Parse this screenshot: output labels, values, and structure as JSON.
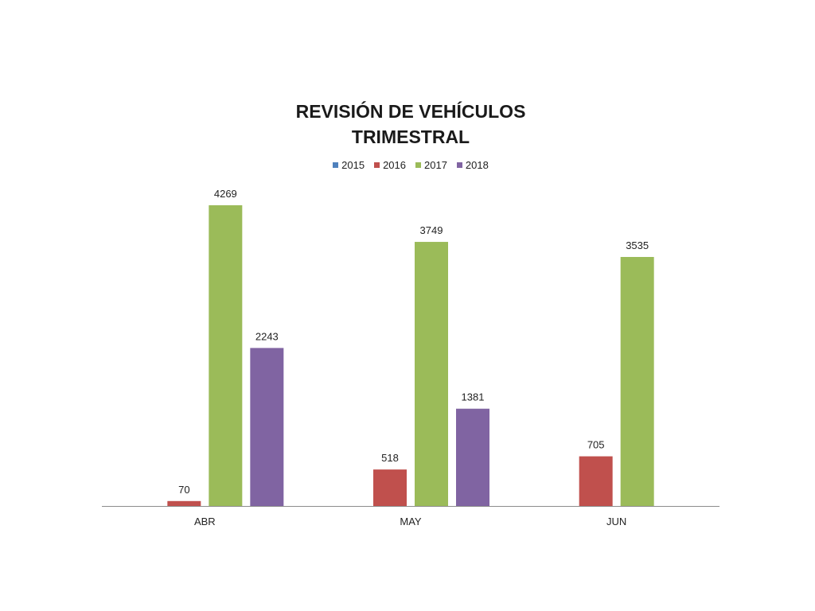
{
  "chart_data": {
    "type": "bar",
    "title": [
      "REVISIÓN DE VEHÍCULOS",
      "TRIMESTRAL"
    ],
    "categories": [
      "ABR",
      "MAY",
      "JUN"
    ],
    "series": [
      {
        "name": "2015",
        "color": "#4F81BD",
        "values": [
          null,
          null,
          null
        ]
      },
      {
        "name": "2016",
        "color": "#C0504D",
        "values": [
          70,
          518,
          705
        ]
      },
      {
        "name": "2017",
        "color": "#9BBB59",
        "values": [
          4269,
          3749,
          3535
        ]
      },
      {
        "name": "2018",
        "color": "#8064A2",
        "values": [
          2243,
          1381,
          null
        ]
      }
    ],
    "ylim": [
      0,
      4269
    ],
    "legend_position": "top",
    "grid": false,
    "data_labels": true
  }
}
